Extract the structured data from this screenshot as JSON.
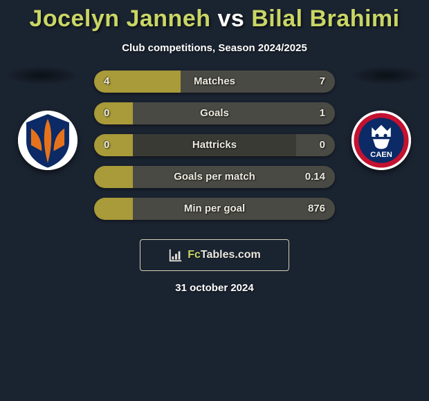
{
  "header": {
    "player1": "Jocelyn Janneh",
    "vs": "vs",
    "player2": "Bilal Brahimi",
    "title_color_p1": "#c9d665",
    "title_color_vs": "#ffffff",
    "title_color_p2": "#c9d665",
    "subtitle": "Club competitions, Season 2024/2025"
  },
  "colors": {
    "bg": "#1a2330",
    "bar_left": "#a99a3a",
    "bar_right": "#4a4a44",
    "bar_track": "#3a3a35",
    "footer_border": "#d6d1b8"
  },
  "bars": [
    {
      "label": "Matches",
      "left_val": "4",
      "right_val": "7",
      "left_pct": 36,
      "right_pct": 64
    },
    {
      "label": "Goals",
      "left_val": "0",
      "right_val": "1",
      "left_pct": 16,
      "right_pct": 84
    },
    {
      "label": "Hattricks",
      "left_val": "0",
      "right_val": "0",
      "left_pct": 16,
      "right_pct": 16
    },
    {
      "label": "Goals per match",
      "left_val": "",
      "right_val": "0.14",
      "left_pct": 16,
      "right_pct": 84
    },
    {
      "label": "Min per goal",
      "left_val": "",
      "right_val": "876",
      "left_pct": 16,
      "right_pct": 84
    }
  ],
  "footer": {
    "brand_prefix": "Fc",
    "brand_suffix": "Tables.com",
    "date": "31 october 2024"
  },
  "crests": {
    "left": {
      "bg": "#ffffff",
      "shield": "#0b2a66",
      "accent": "#e6731b"
    },
    "right": {
      "bg": "#ffffff",
      "ring_outer": "#c41230",
      "ring_inner": "#0b2a66",
      "text": "CAEN"
    }
  }
}
